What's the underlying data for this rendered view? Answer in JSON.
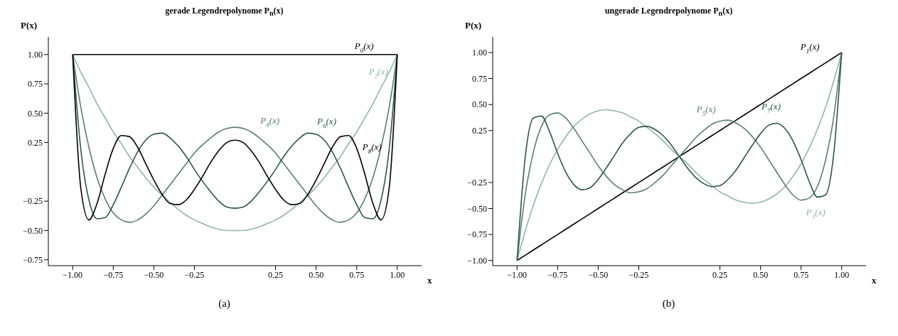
{
  "chart_data": [
    {
      "type": "line",
      "title": "gerade Legendrepolynome P$_{n}$(x)",
      "xlabel": "x",
      "ylabel": "P(x)",
      "x": [
        -1,
        -0.95,
        -0.9,
        -0.85,
        -0.8,
        -0.75,
        -0.7,
        -0.65,
        -0.6,
        -0.55,
        -0.5,
        -0.45,
        -0.4,
        -0.35,
        -0.3,
        -0.25,
        -0.2,
        -0.15,
        -0.1,
        -0.05,
        0,
        0.05,
        0.1,
        0.15,
        0.2,
        0.25,
        0.3,
        0.35,
        0.4,
        0.45,
        0.5,
        0.55,
        0.6,
        0.65,
        0.7,
        0.75,
        0.8,
        0.85,
        0.9,
        0.95,
        1
      ],
      "xlim": [
        -1.15,
        1.15
      ],
      "xticks": [
        {
          "value": -1,
          "label": "−1.00"
        },
        {
          "value": -0.75,
          "label": "−0.75"
        },
        {
          "value": -0.5,
          "label": "−0.50"
        },
        {
          "value": -0.25,
          "label": "−0.25"
        },
        {
          "value": 0.25,
          "label": "0.25"
        },
        {
          "value": 0.5,
          "label": "0.50"
        },
        {
          "value": 0.75,
          "label": "0.75"
        },
        {
          "value": 1,
          "label": "1.00"
        }
      ],
      "ylim": [
        -0.8,
        1.15
      ],
      "yticks": [
        {
          "value": -0.75,
          "label": "−0.75"
        },
        {
          "value": -0.5,
          "label": "−0.50"
        },
        {
          "value": -0.25,
          "label": "−0.25"
        },
        {
          "value": 0.25,
          "label": "0.25"
        },
        {
          "value": 0.5,
          "label": "0.50"
        },
        {
          "value": 0.75,
          "label": "0.75"
        },
        {
          "value": 1,
          "label": "1.00"
        }
      ],
      "series": [
        {
          "name": "P$_{0}$(x)",
          "color": "#000000",
          "values": [
            1,
            1,
            1,
            1,
            1,
            1,
            1,
            1,
            1,
            1,
            1,
            1,
            1,
            1,
            1,
            1,
            1,
            1,
            1,
            1,
            1,
            1,
            1,
            1,
            1,
            1,
            1,
            1,
            1,
            1,
            1,
            1,
            1,
            1,
            1,
            1,
            1,
            1,
            1,
            1,
            1
          ]
        },
        {
          "name": "P$_{2}$(x)",
          "color": "#93b3ae",
          "values": [
            1,
            0.85,
            0.72,
            0.58,
            0.46,
            0.34,
            0.24,
            0.13,
            0.04,
            -0.05,
            -0.13,
            -0.2,
            -0.26,
            -0.32,
            -0.37,
            -0.41,
            -0.44,
            -0.47,
            -0.49,
            -0.5,
            -0.5,
            -0.5,
            -0.49,
            -0.47,
            -0.44,
            -0.41,
            -0.37,
            -0.32,
            -0.26,
            -0.2,
            -0.13,
            -0.05,
            0.04,
            0.13,
            0.24,
            0.34,
            0.46,
            0.58,
            0.72,
            0.85,
            1
          ]
        },
        {
          "name": "P$_{4}$(x)",
          "color": "#5c7c78",
          "values": [
            1,
            0.55,
            0.21,
            -0.05,
            -0.23,
            -0.35,
            -0.41,
            -0.43,
            -0.41,
            -0.36,
            -0.29,
            -0.2,
            -0.11,
            -0.02,
            0.07,
            0.16,
            0.23,
            0.29,
            0.34,
            0.37,
            0.38,
            0.37,
            0.34,
            0.29,
            0.23,
            0.16,
            0.07,
            -0.02,
            -0.11,
            -0.2,
            -0.29,
            -0.36,
            -0.41,
            -0.43,
            -0.41,
            -0.35,
            -0.23,
            -0.05,
            0.21,
            0.55,
            1
          ]
        },
        {
          "name": "P$_{6}$(x)",
          "color": "#2e5350",
          "values": [
            1,
            0.19,
            -0.24,
            -0.4,
            -0.39,
            -0.28,
            -0.13,
            0.03,
            0.17,
            0.27,
            0.32,
            0.33,
            0.29,
            0.22,
            0.13,
            0.02,
            -0.08,
            -0.17,
            -0.25,
            -0.3,
            -0.31,
            -0.3,
            -0.25,
            -0.17,
            -0.08,
            0.02,
            0.13,
            0.22,
            0.29,
            0.33,
            0.32,
            0.27,
            0.17,
            0.03,
            -0.13,
            -0.28,
            -0.39,
            -0.4,
            -0.24,
            0.19,
            1
          ]
        },
        {
          "name": "P$_{8}$(x)",
          "color": "#000000",
          "values": [
            1,
            -0.14,
            -0.41,
            -0.27,
            -0.02,
            0.2,
            0.31,
            0.3,
            0.21,
            0.07,
            -0.07,
            -0.19,
            -0.27,
            -0.28,
            -0.24,
            -0.15,
            -0.04,
            0.08,
            0.18,
            0.25,
            0.27,
            0.25,
            0.18,
            0.08,
            -0.04,
            -0.15,
            -0.24,
            -0.28,
            -0.27,
            -0.19,
            -0.07,
            0.07,
            0.21,
            0.3,
            0.31,
            0.2,
            -0.02,
            -0.27,
            -0.41,
            -0.14,
            1
          ]
        }
      ],
      "annotations": [
        "(a)"
      ]
    },
    {
      "type": "line",
      "title": "ungerade Legendrepolynome P$_{n}$(x)",
      "xlabel": "x",
      "ylabel": "P(x)",
      "x": [
        -1,
        -0.95,
        -0.9,
        -0.85,
        -0.8,
        -0.75,
        -0.7,
        -0.65,
        -0.6,
        -0.55,
        -0.5,
        -0.45,
        -0.4,
        -0.35,
        -0.3,
        -0.25,
        -0.2,
        -0.15,
        -0.1,
        -0.05,
        0,
        0.05,
        0.1,
        0.15,
        0.2,
        0.25,
        0.3,
        0.35,
        0.4,
        0.45,
        0.5,
        0.55,
        0.6,
        0.65,
        0.7,
        0.75,
        0.8,
        0.85,
        0.9,
        0.95,
        1
      ],
      "xlim": [
        -1.15,
        1.15
      ],
      "xticks": [
        {
          "value": -1,
          "label": "−1.00"
        },
        {
          "value": -0.75,
          "label": "−0.75"
        },
        {
          "value": -0.5,
          "label": "−0.50"
        },
        {
          "value": -0.25,
          "label": "−0.25"
        },
        {
          "value": 0.25,
          "label": "0.25"
        },
        {
          "value": 0.5,
          "label": "0.50"
        },
        {
          "value": 0.75,
          "label": "0.75"
        },
        {
          "value": 1,
          "label": "1.00"
        }
      ],
      "ylim": [
        -1.05,
        1.15
      ],
      "yticks": [
        {
          "value": -1,
          "label": "−1.00"
        },
        {
          "value": -0.75,
          "label": "−0.75"
        },
        {
          "value": -0.5,
          "label": "−0.50"
        },
        {
          "value": -0.25,
          "label": "−0.25"
        },
        {
          "value": 0.25,
          "label": "0.25"
        },
        {
          "value": 0.5,
          "label": "0.50"
        },
        {
          "value": 0.75,
          "label": "0.75"
        },
        {
          "value": 1,
          "label": "1.00"
        }
      ],
      "series": [
        {
          "name": "P$_{1}$(x)",
          "color": "#000000",
          "values": [
            -1,
            -0.95,
            -0.9,
            -0.85,
            -0.8,
            -0.75,
            -0.7,
            -0.65,
            -0.6,
            -0.55,
            -0.5,
            -0.45,
            -0.4,
            -0.35,
            -0.3,
            -0.25,
            -0.2,
            -0.15,
            -0.1,
            -0.05,
            0,
            0.05,
            0.1,
            0.15,
            0.2,
            0.25,
            0.3,
            0.35,
            0.4,
            0.45,
            0.5,
            0.55,
            0.6,
            0.65,
            0.7,
            0.75,
            0.8,
            0.85,
            0.9,
            0.95,
            1
          ]
        },
        {
          "name": "P$_{3}$(x)",
          "color": "#93b3ae",
          "values": [
            -1,
            -0.72,
            -0.47,
            -0.26,
            -0.08,
            0.07,
            0.19,
            0.29,
            0.36,
            0.41,
            0.44,
            0.45,
            0.44,
            0.42,
            0.38,
            0.34,
            0.28,
            0.22,
            0.15,
            0.07,
            0,
            -0.07,
            -0.15,
            -0.22,
            -0.28,
            -0.34,
            -0.38,
            -0.42,
            -0.44,
            -0.45,
            -0.44,
            -0.41,
            -0.36,
            -0.29,
            -0.19,
            -0.07,
            0.08,
            0.26,
            0.47,
            0.72,
            1
          ]
        },
        {
          "name": "P$_{5}$(x)",
          "color": "#5c7c78",
          "values": [
            -1,
            -0.37,
            0.04,
            0.29,
            0.4,
            0.42,
            0.37,
            0.27,
            0.15,
            0.03,
            -0.09,
            -0.19,
            -0.27,
            -0.32,
            -0.35,
            -0.34,
            -0.31,
            -0.25,
            -0.18,
            -0.09,
            0,
            0.09,
            0.18,
            0.25,
            0.31,
            0.34,
            0.35,
            0.32,
            0.27,
            0.19,
            0.09,
            -0.03,
            -0.15,
            -0.27,
            -0.37,
            -0.42,
            -0.4,
            -0.29,
            -0.04,
            0.37,
            1
          ]
        },
        {
          "name": "P$_{7}$(x)",
          "color": "#2e5350",
          "values": [
            -1,
            -0.01,
            0.37,
            0.39,
            0.24,
            0.03,
            -0.15,
            -0.27,
            -0.32,
            -0.3,
            -0.22,
            -0.11,
            0.01,
            0.13,
            0.22,
            0.28,
            0.29,
            0.26,
            0.2,
            0.11,
            0,
            -0.11,
            -0.2,
            -0.26,
            -0.29,
            -0.28,
            -0.22,
            -0.13,
            -0.01,
            0.11,
            0.22,
            0.3,
            0.32,
            0.27,
            0.15,
            -0.03,
            -0.24,
            -0.39,
            -0.37,
            0.01,
            1
          ]
        }
      ],
      "annotations": [
        "(b)"
      ]
    }
  ]
}
